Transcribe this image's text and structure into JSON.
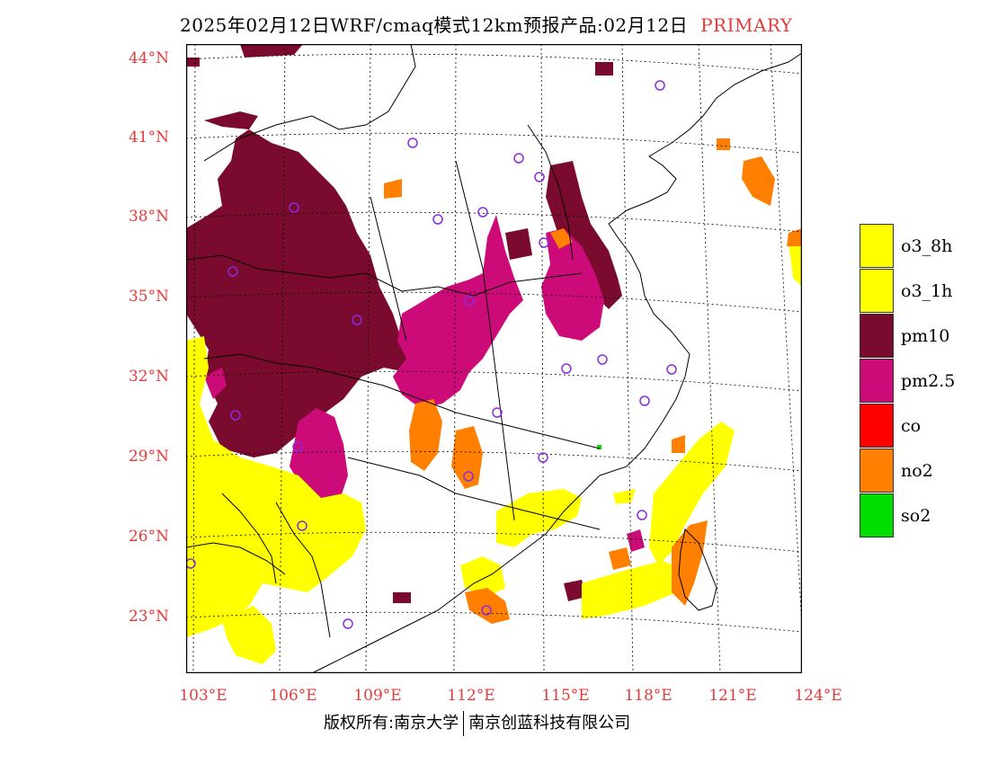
{
  "title": {
    "main": "2025年02月12日WRF/cmaq模式12km预报产品:02月12日",
    "tag": "PRIMARY"
  },
  "colors": {
    "label": "#e33b3b",
    "o3_8h": "#ffff00",
    "o3_1h": "#ffff00",
    "pm10": "#7a0a2e",
    "pm25": "#cc0a78",
    "co": "#ff0000",
    "no2": "#ff7f00",
    "so2": "#00dd00",
    "city_marker": "#8a2be2"
  },
  "axes": {
    "lat_labels": [
      "44°N",
      "41°N",
      "38°N",
      "35°N",
      "32°N",
      "29°N",
      "26°N",
      "23°N"
    ],
    "lon_labels": [
      "103°E",
      "106°E",
      "109°E",
      "112°E",
      "115°E",
      "118°E",
      "121°E",
      "124°E"
    ]
  },
  "legend": [
    {
      "key": "o3_8h",
      "label": "o3_8h"
    },
    {
      "key": "o3_1h",
      "label": "o3_1h"
    },
    {
      "key": "pm10",
      "label": "pm10"
    },
    {
      "key": "pm25",
      "label": "pm2.5"
    },
    {
      "key": "co",
      "label": "co"
    },
    {
      "key": "no2",
      "label": "no2"
    },
    {
      "key": "so2",
      "label": "so2"
    }
  ],
  "copyright": {
    "left": "版权所有:南京大学",
    "right": "南京创蓝科技有限公司"
  }
}
